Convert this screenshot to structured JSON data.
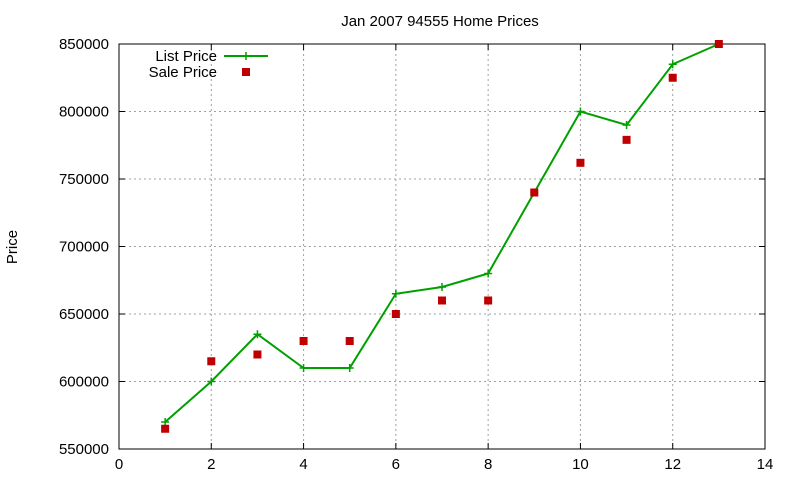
{
  "chart_data": {
    "type": "line",
    "title": "Jan 2007 94555 Home Prices",
    "xlabel": "",
    "ylabel": "Price",
    "xlim": [
      0,
      14
    ],
    "ylim": [
      550000,
      850000
    ],
    "x_ticks": [
      "0",
      "2",
      "4",
      "6",
      "8",
      "10",
      "12",
      "14"
    ],
    "y_ticks": [
      "550000",
      "600000",
      "650000",
      "700000",
      "750000",
      "800000",
      "850000"
    ],
    "grid": true,
    "legend_position": "top-left",
    "series": [
      {
        "name": "List Price",
        "style": "line+cross",
        "color": "#00a000",
        "x": [
          1,
          2,
          3,
          4,
          5,
          6,
          7,
          8,
          9,
          10,
          11,
          12,
          13
        ],
        "y": [
          570000,
          600000,
          635000,
          610000,
          610000,
          665000,
          670000,
          680000,
          740000,
          800000,
          790000,
          835000,
          850000
        ]
      },
      {
        "name": "Sale Price",
        "style": "square-points",
        "color": "#c00000",
        "x": [
          1,
          2,
          3,
          4,
          5,
          6,
          7,
          8,
          9,
          10,
          11,
          12,
          13
        ],
        "y": [
          565000,
          615000,
          620000,
          630000,
          630000,
          650000,
          660000,
          660000,
          740000,
          762000,
          779000,
          825000,
          850000
        ]
      }
    ]
  }
}
